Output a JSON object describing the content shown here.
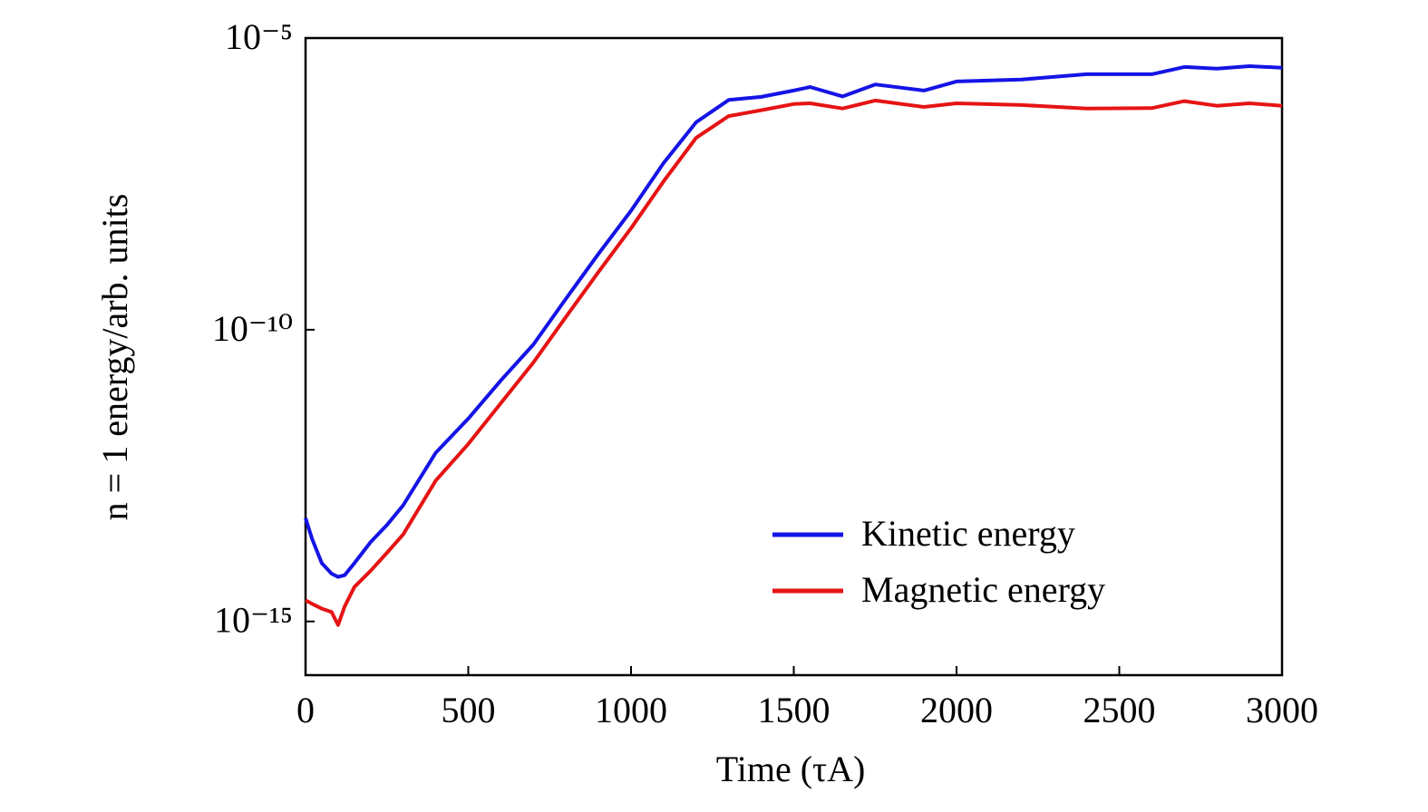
{
  "chart_data": {
    "type": "line",
    "x_label": "Time (τA)",
    "y_label": "n = 1 energy/arb. units",
    "log_y": true,
    "legend": "lower right",
    "x": [
      0,
      20,
      50,
      80,
      100,
      120,
      150,
      200,
      250,
      300,
      400,
      500,
      600,
      700,
      800,
      900,
      1000,
      1100,
      1200,
      1300,
      1400,
      1500,
      1550,
      1650,
      1750,
      1900,
      2000,
      2200,
      2400,
      2600,
      2700,
      2800,
      2900,
      3000
    ],
    "series": [
      {
        "name": "Kinetic energy",
        "color": "#1414e6",
        "values": [
          5.9e-14,
          2.6e-14,
          1e-14,
          6.6e-15,
          5.8e-15,
          6.2e-15,
          1e-14,
          2.3e-14,
          4.5e-14,
          9.8e-14,
          7.8e-13,
          3e-12,
          1.35e-11,
          5.6e-11,
          3.4e-10,
          2e-09,
          1.1e-08,
          7.2e-08,
          3.6e-07,
          8.7e-07,
          9.8e-07,
          1.26e-06,
          1.45e-06,
          1e-06,
          1.6e-06,
          1.26e-06,
          1.8e-06,
          1.95e-06,
          2.4e-06,
          2.4e-06,
          3.2e-06,
          3e-06,
          3.3e-06,
          3.1e-06
        ]
      },
      {
        "name": "Magnetic energy",
        "color": "#e61414",
        "values": [
          2.3e-15,
          2e-15,
          1.66e-15,
          1.45e-15,
          8.7e-16,
          1.8e-15,
          3.9e-15,
          7.4e-15,
          1.5e-14,
          3.1e-14,
          2.6e-13,
          1.1e-12,
          5.5e-12,
          2.75e-11,
          1.66e-10,
          9.8e-10,
          5.5e-09,
          3.5e-08,
          1.95e-07,
          4.6e-07,
          5.8e-07,
          7.4e-07,
          7.6e-07,
          6.2e-07,
          8.5e-07,
          6.6e-07,
          7.6e-07,
          7.1e-07,
          6.2e-07,
          6.3e-07,
          8.3e-07,
          6.9e-07,
          7.6e-07,
          6.9e-07
        ]
      }
    ],
    "xlim": [
      0,
      3000
    ],
    "xticks": [
      0,
      500,
      1000,
      1500,
      2000,
      2500,
      3000
    ],
    "ylim": [
      1.2e-16,
      1e-05
    ],
    "yticks": [
      {
        "value": 1e-15,
        "label": "10⁻¹⁵"
      },
      {
        "value": 1e-10,
        "label": "10⁻¹⁰"
      },
      {
        "value": 1e-05,
        "label": "10⁻⁵"
      }
    ]
  }
}
